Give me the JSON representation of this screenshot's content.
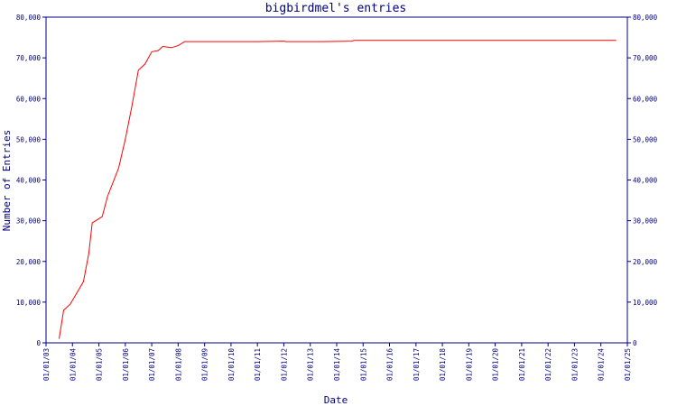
{
  "chart_data": {
    "type": "line",
    "title": "bigbirdmel's entries",
    "xlabel": "Date",
    "ylabel": "Number of Entries",
    "ylim": [
      0,
      80000
    ],
    "y_ticks": [
      0,
      10000,
      20000,
      30000,
      40000,
      50000,
      60000,
      70000,
      80000
    ],
    "y_tick_labels": [
      "0",
      "10,000",
      "20,000",
      "30,000",
      "40,000",
      "50,000",
      "60,000",
      "70,000",
      "80,000"
    ],
    "x_ticks": [
      "01/01/03",
      "01/01/04",
      "01/01/05",
      "01/01/06",
      "01/01/07",
      "01/01/08",
      "01/01/09",
      "01/01/10",
      "01/01/11",
      "01/01/12",
      "01/01/13",
      "01/01/14",
      "01/01/15",
      "01/01/16",
      "01/01/17",
      "01/01/18",
      "01/01/19",
      "01/01/20",
      "01/01/21",
      "01/01/22",
      "01/01/23",
      "01/01/24",
      "01/01/25"
    ],
    "xlim": [
      "2003-01-01",
      "2025-01-01"
    ],
    "grid": false,
    "legend": "none",
    "series_color": "#ff0000",
    "axis_color": "#000080",
    "series": [
      {
        "points": [
          [
            "2003-07-01",
            1000
          ],
          [
            "2003-09-01",
            8000
          ],
          [
            "2003-12-01",
            9500
          ],
          [
            "2004-06-01",
            15000
          ],
          [
            "2004-08-15",
            22000
          ],
          [
            "2004-10-01",
            29500
          ],
          [
            "2005-01-01",
            30500
          ],
          [
            "2005-02-15",
            31000
          ],
          [
            "2005-05-01",
            36000
          ],
          [
            "2005-10-01",
            43000
          ],
          [
            "2006-01-01",
            50000
          ],
          [
            "2006-04-01",
            58000
          ],
          [
            "2006-07-01",
            67000
          ],
          [
            "2006-10-01",
            68500
          ],
          [
            "2007-01-01",
            71500
          ],
          [
            "2007-04-01",
            71800
          ],
          [
            "2007-06-01",
            72800
          ],
          [
            "2007-10-01",
            72500
          ],
          [
            "2008-01-01",
            73000
          ],
          [
            "2008-04-01",
            74000
          ],
          [
            "2008-09-01",
            74000
          ],
          [
            "2010-01-01",
            74000
          ],
          [
            "2011-01-01",
            74000
          ],
          [
            "2012-01-01",
            74100
          ],
          [
            "2012-02-01",
            74000
          ],
          [
            "2013-06-01",
            74000
          ],
          [
            "2014-08-01",
            74100
          ],
          [
            "2014-09-01",
            74300
          ],
          [
            "2016-01-01",
            74300
          ],
          [
            "2018-01-01",
            74300
          ],
          [
            "2020-01-01",
            74300
          ],
          [
            "2022-01-01",
            74300
          ],
          [
            "2024-08-01",
            74300
          ]
        ]
      }
    ]
  }
}
